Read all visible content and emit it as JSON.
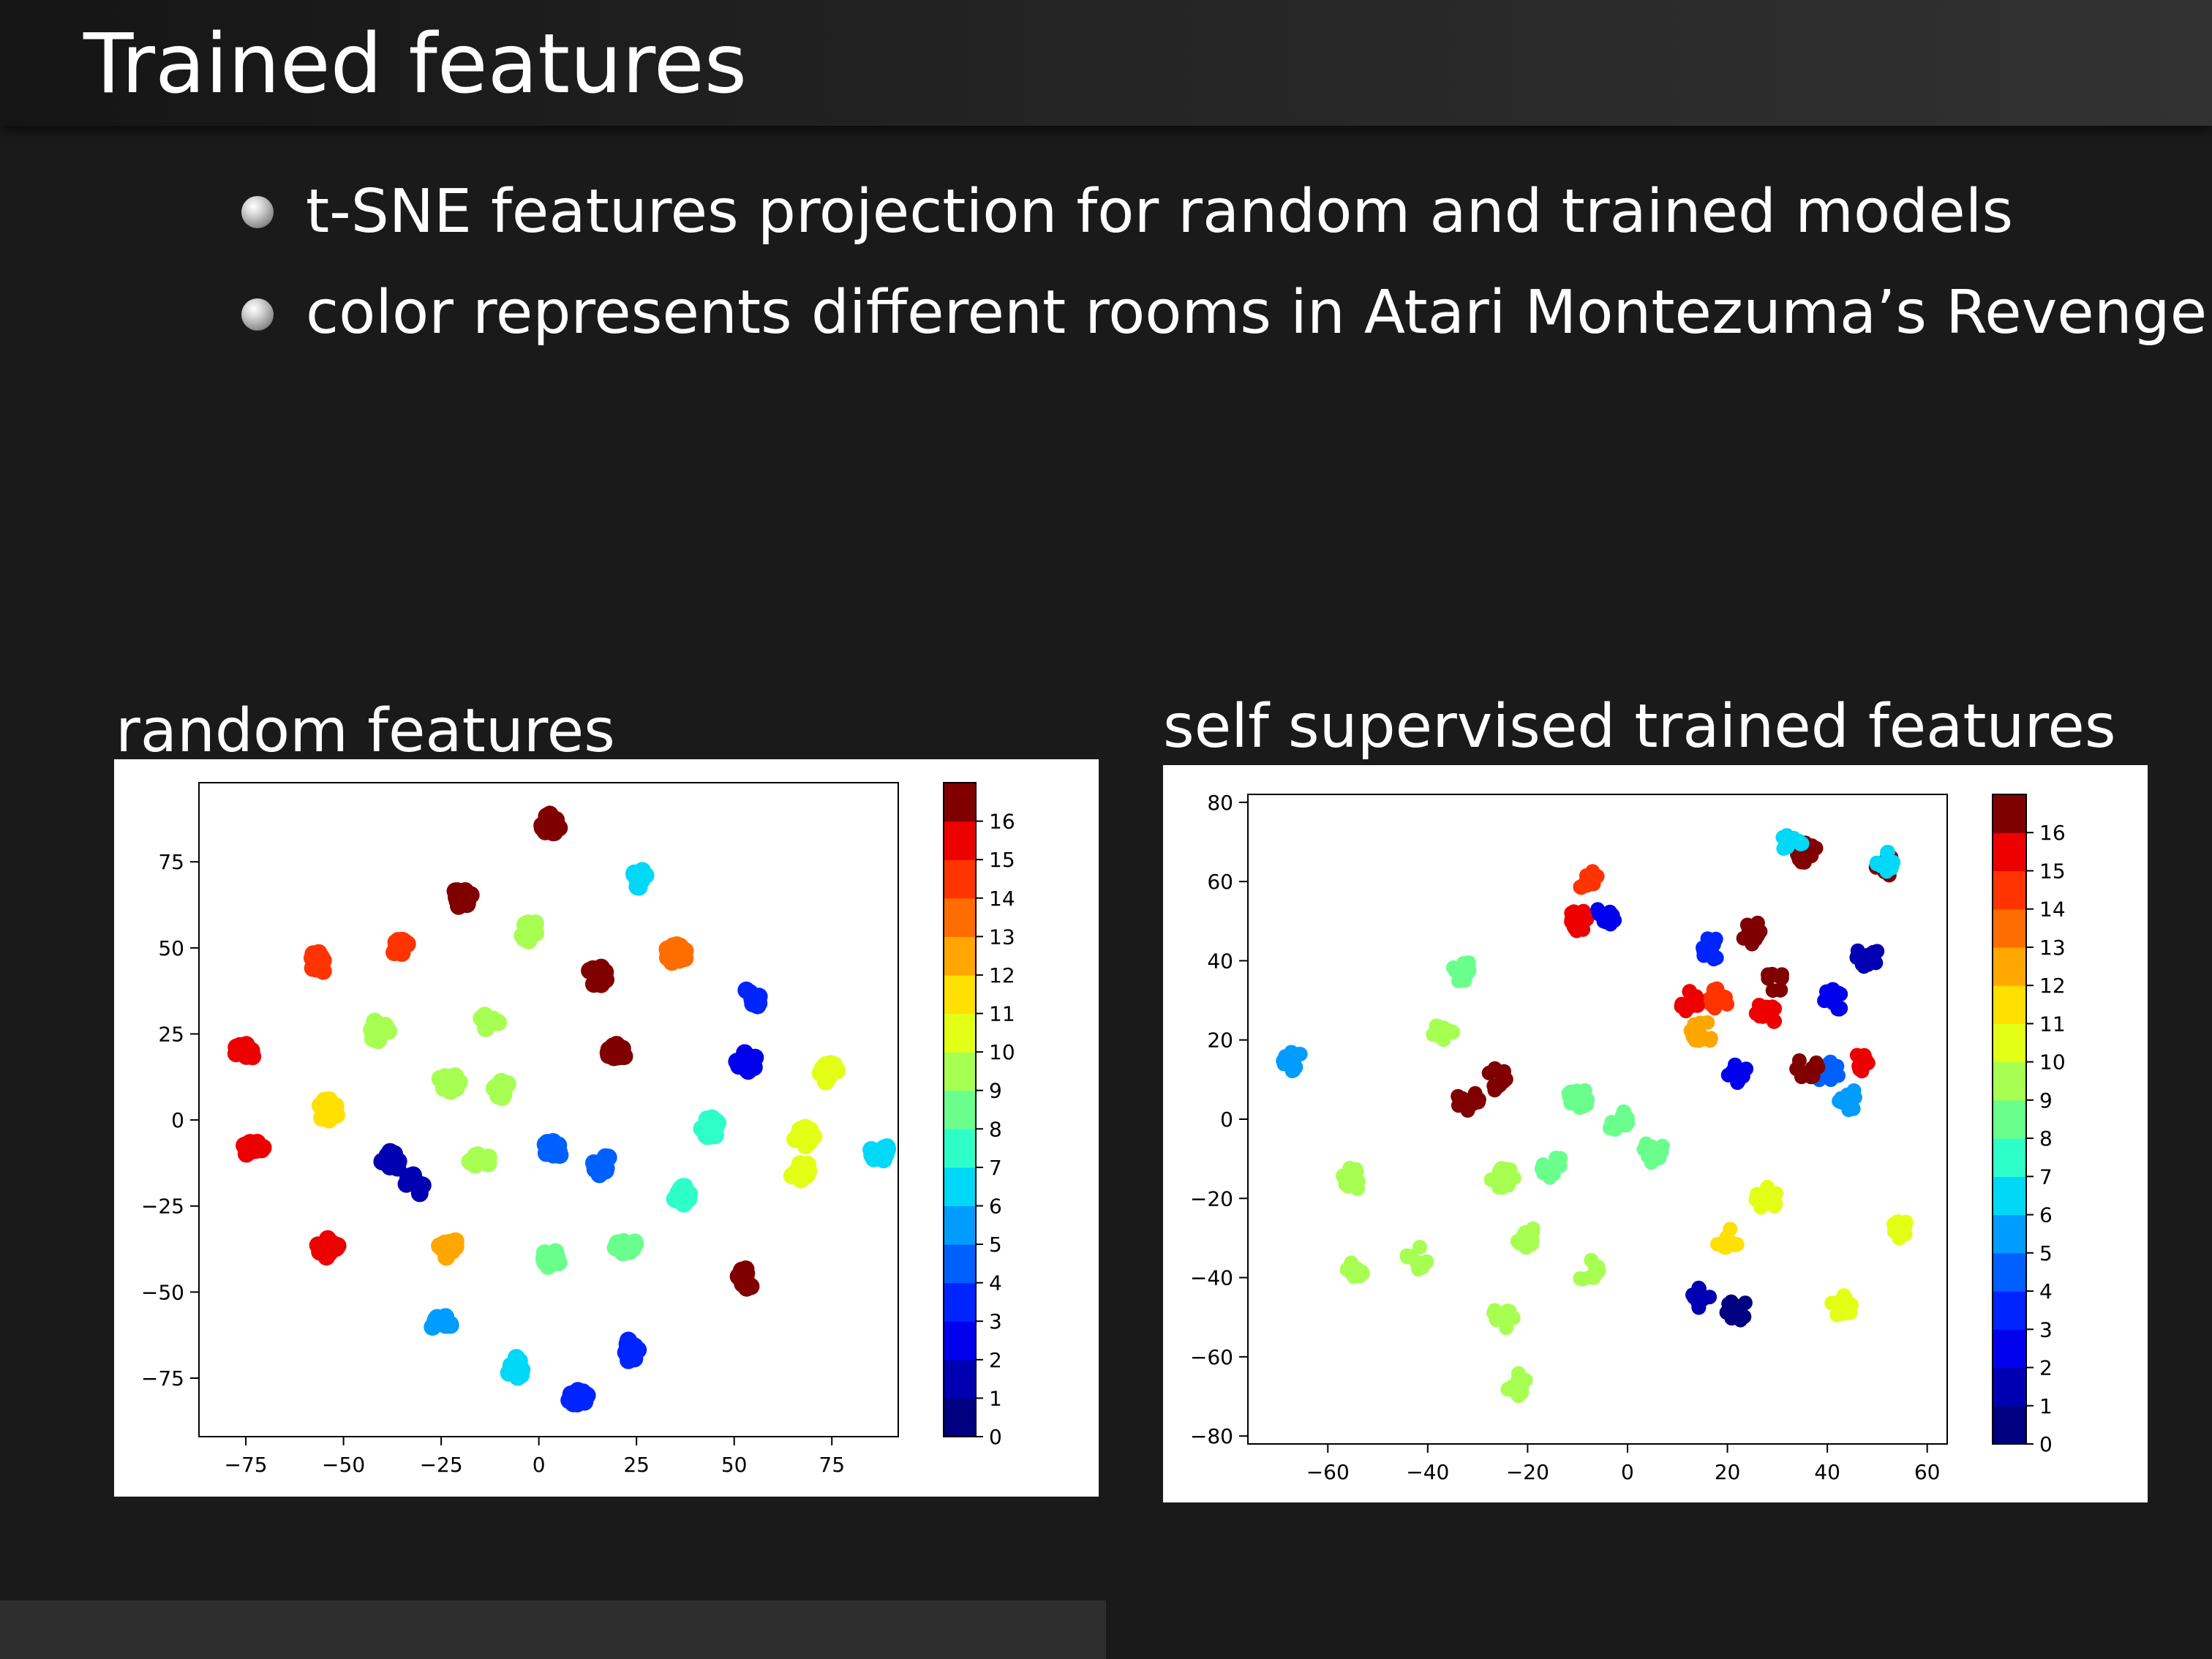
{
  "slide": {
    "title": "Trained features",
    "bullets": [
      "t-SNE features projection for random and trained models",
      "color represents different rooms in Atari Montezuma’s Revenge"
    ]
  },
  "colorbar": {
    "colormap": "jet",
    "colors": [
      "#000080",
      "#0000b2",
      "#0000ec",
      "#0024ff",
      "#0060ff",
      "#009cff",
      "#00d8f8",
      "#2effc9",
      "#6aff8d",
      "#a6ff51",
      "#e2ff15",
      "#ffe000",
      "#ffa700",
      "#ff6d00",
      "#ff3400",
      "#ec0000",
      "#800000"
    ],
    "ticks": [
      0,
      1,
      2,
      3,
      4,
      5,
      6,
      7,
      8,
      9,
      10,
      11,
      12,
      13,
      14,
      15,
      16
    ]
  },
  "chart_data": [
    {
      "type": "scatter",
      "title": "random features",
      "xlim": [
        -87,
        92
      ],
      "ylim": [
        -92,
        98
      ],
      "xticks": [
        -75,
        -50,
        -25,
        0,
        25,
        50,
        75
      ],
      "yticks": [
        -75,
        -50,
        -25,
        0,
        25,
        50,
        75
      ],
      "xtick_labels": [
        "−75",
        "−50",
        "−25",
        "0",
        "25",
        "50",
        "75"
      ],
      "ytick_labels": [
        "−75",
        "−50",
        "−25",
        "0",
        "25",
        "50",
        "75"
      ],
      "colorbar_range": [
        0,
        17
      ],
      "clusters": [
        {
          "x": 3,
          "y": 86,
          "label": 16
        },
        {
          "x": -20,
          "y": 65,
          "label": 16
        },
        {
          "x": 26,
          "y": 70,
          "label": 6
        },
        {
          "x": -2,
          "y": 55,
          "label": 9
        },
        {
          "x": -56,
          "y": 46,
          "label": 14
        },
        {
          "x": -35,
          "y": 50,
          "label": 14
        },
        {
          "x": 35,
          "y": 48,
          "label": 13
        },
        {
          "x": 15,
          "y": 42,
          "label": 16
        },
        {
          "x": -41,
          "y": 26,
          "label": 9
        },
        {
          "x": -13,
          "y": 28,
          "label": 9
        },
        {
          "x": -75,
          "y": 20,
          "label": 15
        },
        {
          "x": 20,
          "y": 20,
          "label": 16
        },
        {
          "x": 54,
          "y": 35,
          "label": 3
        },
        {
          "x": 53,
          "y": 17,
          "label": 2
        },
        {
          "x": 74,
          "y": 14,
          "label": 10
        },
        {
          "x": -23,
          "y": 11,
          "label": 9
        },
        {
          "x": -10,
          "y": 9,
          "label": 9
        },
        {
          "x": -54,
          "y": 3,
          "label": 11
        },
        {
          "x": 44,
          "y": -2,
          "label": 7
        },
        {
          "x": 68,
          "y": -5,
          "label": 10
        },
        {
          "x": 87,
          "y": -9,
          "label": 6
        },
        {
          "x": -73,
          "y": -8,
          "label": 15
        },
        {
          "x": -38,
          "y": -12,
          "label": 1
        },
        {
          "x": -32,
          "y": -19,
          "label": 1
        },
        {
          "x": -15,
          "y": -12,
          "label": 9
        },
        {
          "x": 3,
          "y": -9,
          "label": 4
        },
        {
          "x": 16,
          "y": -13,
          "label": 4
        },
        {
          "x": 37,
          "y": -22,
          "label": 7
        },
        {
          "x": 67,
          "y": -15,
          "label": 10
        },
        {
          "x": -54,
          "y": -37,
          "label": 15
        },
        {
          "x": -23,
          "y": -37,
          "label": 12
        },
        {
          "x": 3,
          "y": -40,
          "label": 8
        },
        {
          "x": 22,
          "y": -36,
          "label": 8
        },
        {
          "x": 53,
          "y": -46,
          "label": 16
        },
        {
          "x": -25,
          "y": -59,
          "label": 5
        },
        {
          "x": 23,
          "y": -67,
          "label": 3
        },
        {
          "x": -6,
          "y": -72,
          "label": 6
        },
        {
          "x": 10,
          "y": -80,
          "label": 3
        }
      ]
    },
    {
      "type": "scatter",
      "title": "self supervised trained features",
      "xlim": [
        -76,
        64
      ],
      "ylim": [
        -82,
        82
      ],
      "xticks": [
        -60,
        -40,
        -20,
        0,
        20,
        40,
        60
      ],
      "yticks": [
        -80,
        -60,
        -40,
        -20,
        0,
        20,
        40,
        60,
        80
      ],
      "xtick_labels": [
        "−60",
        "−40",
        "−20",
        "0",
        "20",
        "40",
        "60"
      ],
      "ytick_labels": [
        "−80",
        "−60",
        "−40",
        "−20",
        "0",
        "20",
        "40",
        "60",
        "80"
      ],
      "colorbar_range": [
        0,
        17
      ],
      "clusters": [
        {
          "x": -67,
          "y": 15,
          "label": 5
        },
        {
          "x": -33,
          "y": 37,
          "label": 8
        },
        {
          "x": -37,
          "y": 23,
          "label": 9
        },
        {
          "x": -32,
          "y": 5,
          "label": 16
        },
        {
          "x": -26,
          "y": 10,
          "label": 16
        },
        {
          "x": -10,
          "y": 50,
          "label": 15
        },
        {
          "x": -4,
          "y": 52,
          "label": 2
        },
        {
          "x": -8,
          "y": 60,
          "label": 14
        },
        {
          "x": 17,
          "y": 43,
          "label": 3
        },
        {
          "x": 25,
          "y": 47,
          "label": 16
        },
        {
          "x": 15,
          "y": 22,
          "label": 12
        },
        {
          "x": 18,
          "y": 30,
          "label": 14
        },
        {
          "x": 28,
          "y": 27,
          "label": 15
        },
        {
          "x": 36,
          "y": 67,
          "label": 16
        },
        {
          "x": 33,
          "y": 70,
          "label": 6
        },
        {
          "x": 52,
          "y": 64,
          "label": 16
        },
        {
          "x": 51,
          "y": 65,
          "label": 6
        },
        {
          "x": 48,
          "y": 41,
          "label": 1
        },
        {
          "x": 41,
          "y": 30,
          "label": 2
        },
        {
          "x": 40,
          "y": 12,
          "label": 4
        },
        {
          "x": 47,
          "y": 15,
          "label": 15
        },
        {
          "x": 36,
          "y": 13,
          "label": 16
        },
        {
          "x": 44,
          "y": 5,
          "label": 5
        },
        {
          "x": -10,
          "y": 5,
          "label": 8
        },
        {
          "x": -2,
          "y": 0,
          "label": 8
        },
        {
          "x": 5,
          "y": -8,
          "label": 8
        },
        {
          "x": -15,
          "y": -12,
          "label": 8
        },
        {
          "x": -25,
          "y": -15,
          "label": 9
        },
        {
          "x": -55,
          "y": -15,
          "label": 9
        },
        {
          "x": -55,
          "y": -38,
          "label": 9
        },
        {
          "x": -20,
          "y": -30,
          "label": 9
        },
        {
          "x": -8,
          "y": -38,
          "label": 9
        },
        {
          "x": -25,
          "y": -50,
          "label": 9
        },
        {
          "x": -22,
          "y": -67,
          "label": 9
        },
        {
          "x": -42,
          "y": -35,
          "label": 9
        },
        {
          "x": 20,
          "y": -30,
          "label": 11
        },
        {
          "x": 28,
          "y": -20,
          "label": 10
        },
        {
          "x": 15,
          "y": -45,
          "label": 1
        },
        {
          "x": 22,
          "y": -48,
          "label": 0
        },
        {
          "x": 43,
          "y": -47,
          "label": 10
        },
        {
          "x": 55,
          "y": -28,
          "label": 10
        },
        {
          "x": 12,
          "y": 30,
          "label": 15
        },
        {
          "x": 22,
          "y": 12,
          "label": 2
        },
        {
          "x": 30,
          "y": 35,
          "label": 16
        }
      ]
    }
  ]
}
